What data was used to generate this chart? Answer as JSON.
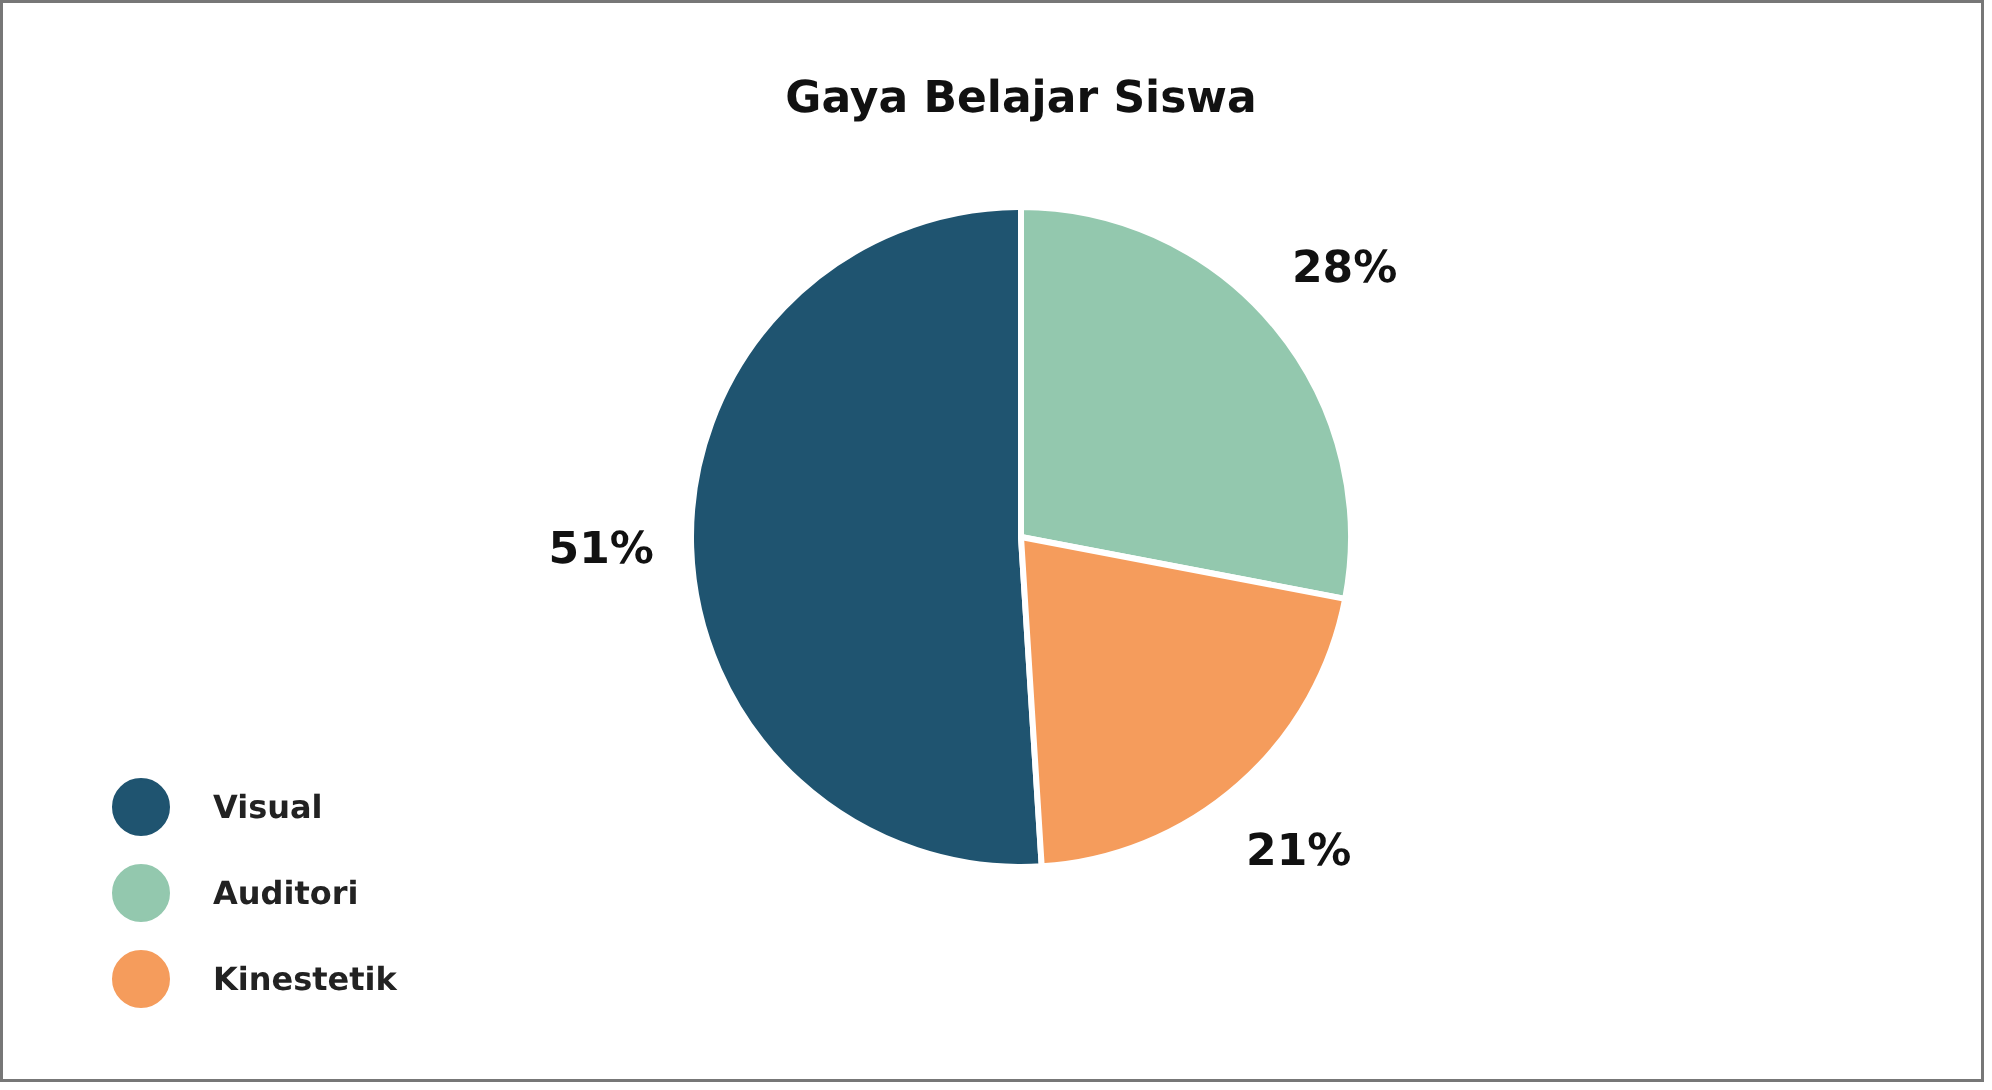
{
  "chart_data": {
    "type": "pie",
    "title": "Gaya Belajar Siswa",
    "categories": [
      "Visual",
      "Auditori",
      "Kinestetik"
    ],
    "values": [
      51,
      28,
      21
    ],
    "value_labels": [
      "51%",
      "28%",
      "21%"
    ],
    "colors": [
      "#1f5470",
      "#93c8ae",
      "#f59c5c"
    ],
    "legend": "bottom left"
  }
}
